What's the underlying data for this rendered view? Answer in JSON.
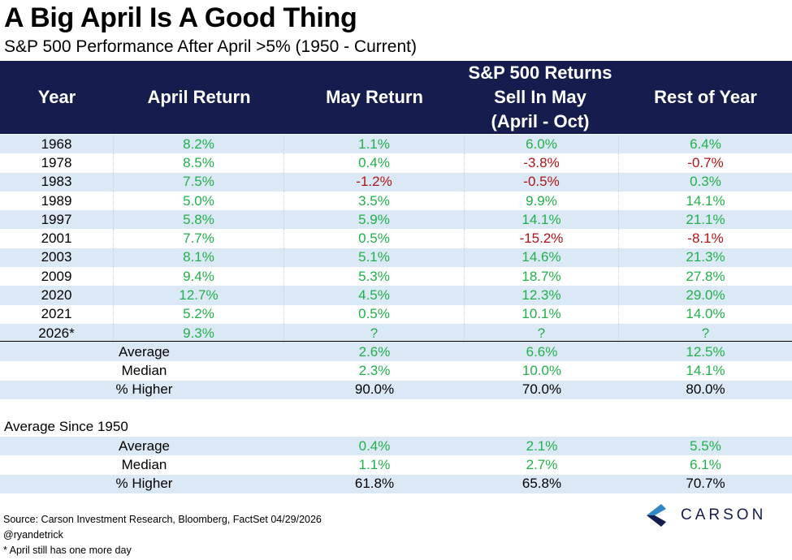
{
  "title": "A Big April Is A Good Thing",
  "subtitle": "S&P 500 Performance After April >5% (1950 - Current)",
  "header": {
    "year": "Year",
    "april": "April Return",
    "may": "May Return",
    "sell_line1": "S&P 500 Returns",
    "sell_line2": "Sell In May",
    "sell_line3": "(April - Oct)",
    "rest": "Rest of Year"
  },
  "rows": [
    {
      "year": "1968",
      "april": "8.2%",
      "may": "1.1%",
      "sell": "6.0%",
      "rest": "6.4%"
    },
    {
      "year": "1978",
      "april": "8.5%",
      "may": "0.4%",
      "sell": "-3.8%",
      "rest": "-0.7%"
    },
    {
      "year": "1983",
      "april": "7.5%",
      "may": "-1.2%",
      "sell": "-0.5%",
      "rest": "0.3%"
    },
    {
      "year": "1989",
      "april": "5.0%",
      "may": "3.5%",
      "sell": "9.9%",
      "rest": "14.1%"
    },
    {
      "year": "1997",
      "april": "5.8%",
      "may": "5.9%",
      "sell": "14.1%",
      "rest": "21.1%"
    },
    {
      "year": "2001",
      "april": "7.7%",
      "may": "0.5%",
      "sell": "-15.2%",
      "rest": "-8.1%"
    },
    {
      "year": "2003",
      "april": "8.1%",
      "may": "5.1%",
      "sell": "14.6%",
      "rest": "21.3%"
    },
    {
      "year": "2009",
      "april": "9.4%",
      "may": "5.3%",
      "sell": "18.7%",
      "rest": "27.8%"
    },
    {
      "year": "2020",
      "april": "12.7%",
      "may": "4.5%",
      "sell": "12.3%",
      "rest": "29.0%"
    },
    {
      "year": "2021",
      "april": "5.2%",
      "may": "0.5%",
      "sell": "10.1%",
      "rest": "14.0%"
    },
    {
      "year": "2026*",
      "april": "9.3%",
      "may": "?",
      "sell": "?",
      "rest": "?"
    }
  ],
  "summary": [
    {
      "label": "Average",
      "may": "2.6%",
      "sell": "6.6%",
      "rest": "12.5%"
    },
    {
      "label": "Median",
      "may": "2.3%",
      "sell": "10.0%",
      "rest": "14.1%"
    },
    {
      "label": "% Higher",
      "may": "90.0%",
      "sell": "70.0%",
      "rest": "80.0%"
    }
  ],
  "since_label": "Average Since 1950",
  "since": [
    {
      "label": "Average",
      "may": "0.4%",
      "sell": "2.1%",
      "rest": "5.5%"
    },
    {
      "label": "Median",
      "may": "1.1%",
      "sell": "2.7%",
      "rest": "6.1%"
    },
    {
      "label": "% Higher",
      "may": "61.8%",
      "sell": "65.8%",
      "rest": "70.7%"
    }
  ],
  "footer": {
    "source": "Source: Carson Investment Research, Bloomberg, FactSet 04/29/2026",
    "handle": "@ryandetrick",
    "note": "* April still has one more day"
  },
  "logo_text": "CARSON",
  "colors": {
    "header_bg": "#141d4d",
    "positive": "#22b04b",
    "negative": "#b31317",
    "shade": "#dbe9f7"
  }
}
